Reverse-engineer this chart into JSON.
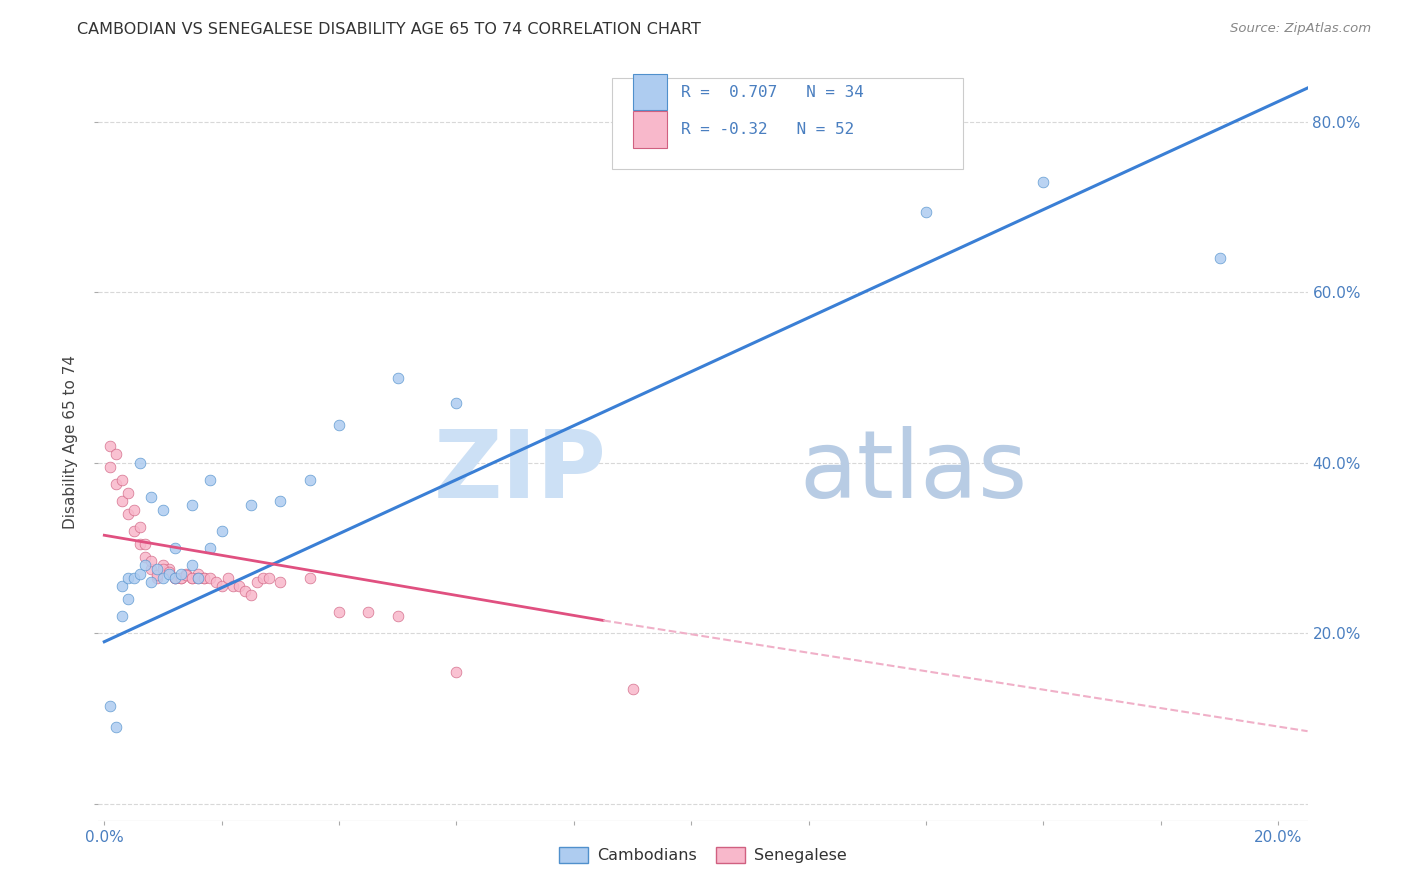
{
  "title": "CAMBODIAN VS SENEGALESE DISABILITY AGE 65 TO 74 CORRELATION CHART",
  "source": "Source: ZipAtlas.com",
  "ylabel": "Disability Age 65 to 74",
  "x_min": -0.001,
  "x_max": 0.205,
  "y_min": -0.02,
  "y_max": 0.87,
  "x_ticks": [
    0.0,
    0.02,
    0.04,
    0.06,
    0.08,
    0.1,
    0.12,
    0.14,
    0.16,
    0.18,
    0.2
  ],
  "x_tick_labels": [
    "0.0%",
    "",
    "",
    "",
    "",
    "",
    "",
    "",
    "",
    "",
    "20.0%"
  ],
  "y_ticks": [
    0.0,
    0.2,
    0.4,
    0.6,
    0.8
  ],
  "y_tick_labels_right": [
    "",
    "20.0%",
    "40.0%",
    "60.0%",
    "80.0%"
  ],
  "cambodian_color": "#aeccf0",
  "senegalese_color": "#f8b8cb",
  "trendline_cambodian_color": "#3a7fd5",
  "trendline_senegalese_color": "#e05080",
  "trendline_senegalese_ext_color": "#f0b0c8",
  "R_cambodian": 0.707,
  "N_cambodian": 34,
  "R_senegalese": -0.32,
  "N_senegalese": 52,
  "cambodian_x": [
    0.001,
    0.002,
    0.003,
    0.004,
    0.005,
    0.006,
    0.007,
    0.008,
    0.009,
    0.01,
    0.011,
    0.012,
    0.013,
    0.015,
    0.016,
    0.018,
    0.02,
    0.025,
    0.03,
    0.035,
    0.04,
    0.05,
    0.06,
    0.003,
    0.004,
    0.006,
    0.008,
    0.01,
    0.012,
    0.015,
    0.018,
    0.14,
    0.16,
    0.19
  ],
  "cambodian_y": [
    0.115,
    0.09,
    0.255,
    0.265,
    0.265,
    0.27,
    0.28,
    0.26,
    0.275,
    0.265,
    0.27,
    0.265,
    0.27,
    0.28,
    0.265,
    0.3,
    0.32,
    0.35,
    0.355,
    0.38,
    0.445,
    0.5,
    0.47,
    0.22,
    0.24,
    0.4,
    0.36,
    0.345,
    0.3,
    0.35,
    0.38,
    0.695,
    0.73,
    0.64
  ],
  "senegalese_x": [
    0.001,
    0.002,
    0.003,
    0.004,
    0.005,
    0.006,
    0.007,
    0.008,
    0.009,
    0.01,
    0.011,
    0.012,
    0.013,
    0.014,
    0.015,
    0.016,
    0.017,
    0.001,
    0.002,
    0.003,
    0.004,
    0.005,
    0.006,
    0.007,
    0.008,
    0.009,
    0.01,
    0.011,
    0.012,
    0.013,
    0.014,
    0.015,
    0.016,
    0.017,
    0.018,
    0.019,
    0.02,
    0.021,
    0.022,
    0.023,
    0.024,
    0.025,
    0.026,
    0.027,
    0.028,
    0.03,
    0.035,
    0.04,
    0.045,
    0.05,
    0.06,
    0.09
  ],
  "senegalese_y": [
    0.395,
    0.375,
    0.355,
    0.34,
    0.32,
    0.305,
    0.29,
    0.275,
    0.265,
    0.28,
    0.275,
    0.265,
    0.265,
    0.27,
    0.265,
    0.27,
    0.265,
    0.42,
    0.41,
    0.38,
    0.365,
    0.345,
    0.325,
    0.305,
    0.285,
    0.268,
    0.275,
    0.272,
    0.265,
    0.265,
    0.268,
    0.265,
    0.265,
    0.265,
    0.265,
    0.26,
    0.255,
    0.265,
    0.255,
    0.255,
    0.25,
    0.245,
    0.26,
    0.265,
    0.265,
    0.26,
    0.265,
    0.225,
    0.225,
    0.22,
    0.155,
    0.135
  ],
  "background_color": "#ffffff",
  "grid_color": "#d8d8d8",
  "watermark_zip": "ZIP",
  "watermark_atlas": "atlas",
  "watermark_color_zip": "#c8dff5",
  "watermark_color_atlas": "#b8d0e8",
  "legend_label_cambodian": "Cambodians",
  "legend_label_senegalese": "Senegalese"
}
